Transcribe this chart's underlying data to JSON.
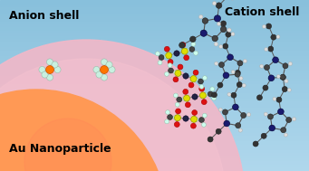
{
  "figsize": [
    3.41,
    1.89
  ],
  "dpi": 100,
  "anion_shell_label": "Anion shell",
  "cation_shell_label": "Cation shell",
  "au_label": "Au Nanoparticle",
  "label_fontsize": 9,
  "label_fontweight": "bold",
  "bg_color_top": "#b0d8ed",
  "bg_color_bottom": "#88c0dc",
  "anion_shell_color": "#f0b8cc",
  "au_center_color": "#ff2200",
  "au_edge_color": "#ff8844",
  "pf6_center": "#ff7700",
  "pf6_ligand": "#c8f0e0",
  "ntf2_s_color": "#dddd00",
  "ntf2_n_color": "#222244",
  "ntf2_o_color": "#dd1111",
  "ntf2_c_color": "#444444",
  "ntf2_f_color": "#ccffee",
  "cation_dark": "#333333",
  "cation_n_color": "#1a1a6e",
  "cation_h_color": "#dddddd"
}
